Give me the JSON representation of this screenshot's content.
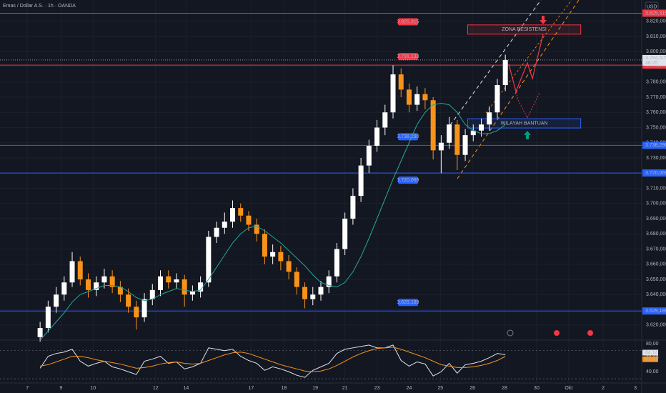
{
  "chart_data": [
    {
      "type": "candlestick",
      "title": "Emas / Dollar A.S. · 1h · OANDA",
      "currency": "USD",
      "xlim": [
        0,
        80
      ],
      "ylim": [
        3610,
        3834
      ],
      "yticks": [
        {
          "value": 3620,
          "label": "3.620,000"
        },
        {
          "value": 3630,
          "label": "3.630,000"
        },
        {
          "value": 3640,
          "label": "3.640,000"
        },
        {
          "value": 3650,
          "label": "3.650,000"
        },
        {
          "value": 3660,
          "label": "3.660,000"
        },
        {
          "value": 3670,
          "label": "3.670,000"
        },
        {
          "value": 3680,
          "label": "3.680,000"
        },
        {
          "value": 3690,
          "label": "3.690,000"
        },
        {
          "value": 3700,
          "label": "3.700,000"
        },
        {
          "value": 3710,
          "label": "3.710,000"
        },
        {
          "value": 3720,
          "label": "3.720,000"
        },
        {
          "value": 3730,
          "label": "3.730,000"
        },
        {
          "value": 3740,
          "label": "3.740,000"
        },
        {
          "value": 3750,
          "label": "3.750,000"
        },
        {
          "value": 3760,
          "label": "3.760,000"
        },
        {
          "value": 3770,
          "label": "3.770,000"
        },
        {
          "value": 3780,
          "label": "3.780,000"
        },
        {
          "value": 3790,
          "label": "3.790,000"
        },
        {
          "value": 3800,
          "label": "3.800,000"
        },
        {
          "value": 3810,
          "label": "3.810,000"
        },
        {
          "value": 3820,
          "label": "3.820,000"
        }
      ],
      "x": [
        5,
        6,
        7,
        8,
        9,
        10,
        11,
        12,
        13,
        14,
        15,
        16,
        17,
        18,
        19,
        20,
        21,
        22,
        23,
        24,
        25,
        26,
        27,
        28,
        29,
        30,
        31,
        32,
        33,
        34,
        35,
        36,
        37,
        38,
        39,
        40,
        41,
        42,
        43,
        44,
        45,
        46,
        47,
        48,
        49,
        50,
        51,
        52,
        53,
        54,
        55,
        56,
        57,
        58,
        59,
        60,
        61,
        62,
        63
      ],
      "open": [
        3612,
        3618,
        3632,
        3640,
        3648,
        3662,
        3650,
        3643,
        3648,
        3652,
        3645,
        3640,
        3632,
        3625,
        3637,
        3643,
        3652,
        3648,
        3650,
        3640,
        3642,
        3648,
        3678,
        3684,
        3688,
        3697,
        3692,
        3686,
        3680,
        3665,
        3668,
        3662,
        3655,
        3645,
        3637,
        3640,
        3645,
        3652,
        3670,
        3690,
        3705,
        3725,
        3738,
        3750,
        3760,
        3785,
        3775,
        3765,
        3772,
        3768,
        3735,
        3740,
        3752,
        3732,
        3745,
        3748,
        3752,
        3760,
        3778
      ],
      "high": [
        3622,
        3636,
        3645,
        3652,
        3668,
        3665,
        3654,
        3652,
        3657,
        3656,
        3649,
        3644,
        3636,
        3641,
        3647,
        3656,
        3656,
        3654,
        3653,
        3646,
        3652,
        3682,
        3688,
        3694,
        3702,
        3700,
        3695,
        3690,
        3683,
        3673,
        3672,
        3666,
        3658,
        3648,
        3645,
        3649,
        3656,
        3674,
        3694,
        3710,
        3730,
        3742,
        3755,
        3765,
        3791,
        3789,
        3779,
        3777,
        3776,
        3770,
        3745,
        3757,
        3755,
        3749,
        3752,
        3756,
        3764,
        3782,
        3798
      ],
      "low": [
        3609,
        3615,
        3628,
        3636,
        3645,
        3646,
        3638,
        3639,
        3644,
        3641,
        3635,
        3628,
        3617,
        3622,
        3633,
        3639,
        3644,
        3644,
        3632,
        3636,
        3638,
        3645,
        3674,
        3680,
        3684,
        3688,
        3682,
        3675,
        3660,
        3660,
        3656,
        3650,
        3640,
        3631,
        3633,
        3636,
        3641,
        3648,
        3666,
        3686,
        3701,
        3720,
        3734,
        3745,
        3756,
        3770,
        3760,
        3761,
        3762,
        3729,
        3720,
        3736,
        3722,
        3728,
        3741,
        3744,
        3748,
        3756,
        3774
      ],
      "close": [
        3618,
        3632,
        3640,
        3648,
        3662,
        3650,
        3643,
        3648,
        3652,
        3645,
        3640,
        3632,
        3625,
        3637,
        3643,
        3652,
        3648,
        3650,
        3640,
        3642,
        3648,
        3678,
        3684,
        3688,
        3697,
        3692,
        3686,
        3680,
        3665,
        3668,
        3662,
        3655,
        3645,
        3637,
        3640,
        3645,
        3652,
        3670,
        3690,
        3705,
        3725,
        3738,
        3750,
        3760,
        3785,
        3775,
        3765,
        3772,
        3768,
        3735,
        3740,
        3752,
        3732,
        3745,
        3748,
        3752,
        3760,
        3778,
        3794.5
      ],
      "ma": [
        3610,
        3616,
        3622,
        3628,
        3635,
        3640,
        3642,
        3644,
        3646,
        3646,
        3645,
        3642,
        3638,
        3636,
        3637,
        3640,
        3642,
        3644,
        3643,
        3642,
        3643,
        3650,
        3658,
        3666,
        3674,
        3680,
        3684,
        3685,
        3682,
        3678,
        3674,
        3669,
        3664,
        3659,
        3653,
        3648,
        3646,
        3645,
        3648,
        3655,
        3665,
        3677,
        3690,
        3703,
        3716,
        3728,
        3740,
        3752,
        3760,
        3765,
        3766,
        3765,
        3760,
        3752,
        3748,
        3746,
        3746,
        3748,
        3752
      ],
      "up_color": "#ffffff",
      "down_color": "#f7931a",
      "ma_color": "#26a69a",
      "levels": [
        {
          "value": 3825.315,
          "label": "3.825,315",
          "color": "#f23645"
        },
        {
          "value": 3791.133,
          "label": "3.791,133",
          "color": "#f23645"
        },
        {
          "value": 3738.29,
          "label": "3.738,290",
          "color": "#2962ff"
        },
        {
          "value": 3720.069,
          "label": "3.720,069",
          "color": "#2962ff"
        },
        {
          "value": 3629.189,
          "label": "3.629,189",
          "color": "#2962ff"
        }
      ],
      "last_price": {
        "value": 3794.505,
        "label": "3.794,505"
      },
      "countdown": "48:25",
      "zones": [
        {
          "label": "ZONA RESISTENSI",
          "xlim": [
            58.3,
            72.4
          ],
          "ylim": [
            3811.5,
            3817.6
          ],
          "color": "#f23645"
        },
        {
          "label": "WILAYAH BANTUAN",
          "xlim": [
            58.3,
            72.4
          ],
          "ylim": [
            3749.7,
            3755.8
          ],
          "color": "#2962ff"
        }
      ]
    },
    {
      "type": "line",
      "xlim": [
        0,
        80
      ],
      "ylim": [
        24,
        85
      ],
      "yticks": [
        {
          "value": 40,
          "label": "40,00"
        },
        {
          "value": 60,
          "label": "60,00"
        },
        {
          "value": 80,
          "label": "80,00"
        }
      ],
      "xticks": [
        {
          "value": 3.4,
          "label": "7"
        },
        {
          "value": 7.6,
          "label": "9"
        },
        {
          "value": 11.6,
          "label": "10"
        },
        {
          "value": 19.4,
          "label": "12"
        },
        {
          "value": 23.2,
          "label": "14"
        },
        {
          "value": 31.3,
          "label": "17"
        },
        {
          "value": 35.4,
          "label": "18"
        },
        {
          "value": 39.3,
          "label": "19"
        },
        {
          "value": 43,
          "label": "21"
        },
        {
          "value": 47,
          "label": "23"
        },
        {
          "value": 51,
          "label": "24"
        },
        {
          "value": 54.9,
          "label": "25"
        },
        {
          "value": 58.9,
          "label": "26"
        },
        {
          "value": 62.9,
          "label": "28"
        },
        {
          "value": 66.9,
          "label": "30"
        },
        {
          "value": 70.9,
          "label": "Okt"
        },
        {
          "value": 75.2,
          "label": "2"
        },
        {
          "value": 79.2,
          "label": "3"
        }
      ],
      "x": [
        5,
        6,
        7,
        8,
        9,
        10,
        11,
        12,
        13,
        14,
        15,
        16,
        17,
        18,
        19,
        20,
        21,
        22,
        23,
        24,
        25,
        26,
        27,
        28,
        29,
        30,
        31,
        32,
        33,
        34,
        35,
        36,
        37,
        38,
        39,
        40,
        41,
        42,
        43,
        44,
        45,
        46,
        47,
        48,
        49,
        50,
        51,
        52,
        53,
        54,
        55,
        56,
        57,
        58,
        59,
        60,
        61,
        62,
        63
      ],
      "series": [
        {
          "color": "#e0e3eb",
          "values": [
            45,
            62,
            66,
            68,
            72,
            55,
            48,
            52,
            55,
            47,
            44,
            40,
            36,
            55,
            58,
            62,
            52,
            54,
            44,
            47,
            52,
            74,
            72,
            70,
            72,
            62,
            56,
            52,
            42,
            47,
            44,
            40,
            35,
            32,
            42,
            47,
            52,
            66,
            72,
            74,
            76,
            78,
            74,
            74,
            78,
            56,
            48,
            54,
            51,
            34,
            40,
            52,
            38,
            50,
            52,
            55,
            60,
            66,
            64.14
          ],
          "value_label": "64,14"
        },
        {
          "color": "#f7931a",
          "values": [
            48,
            50,
            54,
            58,
            62,
            62,
            60,
            57,
            55,
            53,
            51,
            48,
            45,
            46,
            48,
            51,
            53,
            54,
            52,
            51,
            52,
            56,
            60,
            64,
            67,
            68,
            66,
            62,
            58,
            54,
            50,
            47,
            44,
            41,
            40,
            41,
            44,
            49,
            55,
            61,
            66,
            70,
            73,
            74,
            75,
            72,
            68,
            64,
            60,
            55,
            50,
            48,
            46,
            46,
            47,
            49,
            52,
            56,
            61.87
          ],
          "value_label": "61,87"
        }
      ]
    }
  ]
}
